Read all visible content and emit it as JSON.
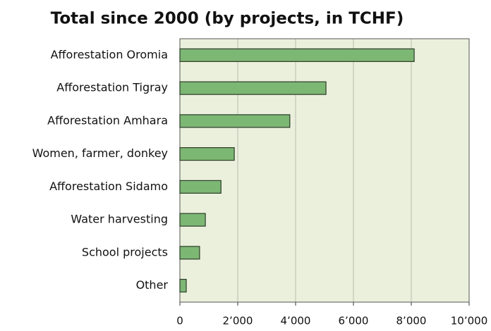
{
  "chart_data": {
    "type": "bar",
    "orientation": "horizontal",
    "title": "Total since 2000 (by projects, in TCHF)",
    "categories": [
      "Afforestation Oromia",
      "Afforestation Tigray",
      "Afforestation Amhara",
      "Women, farmer, donkey",
      "Afforestation Sidamo",
      "Water harvesting",
      "School projects",
      "Other"
    ],
    "values": [
      8100,
      5050,
      3800,
      1880,
      1420,
      880,
      680,
      220
    ],
    "color": "#7db774",
    "xlim": [
      0,
      10000
    ],
    "xticks": [
      0,
      {
        "value": 2000,
        "label": "2’000"
      },
      {
        "value": 4000,
        "label": "4’000"
      },
      {
        "value": 6000,
        "label": "6’000"
      },
      {
        "value": 8000,
        "label": "8’000"
      },
      {
        "value": 10000,
        "label": "10’000"
      }
    ],
    "grid": true
  }
}
